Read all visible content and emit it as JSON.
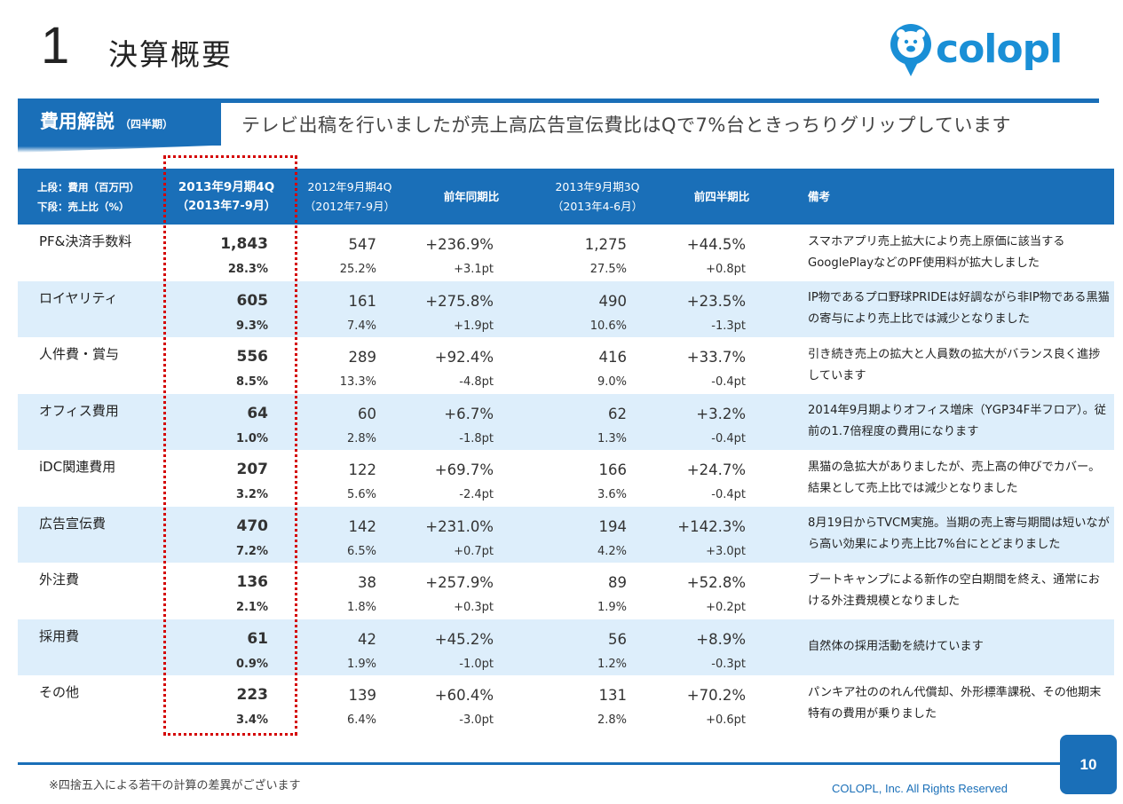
{
  "page": {
    "section_number": "1",
    "section_title": "決算概要",
    "logo_text": "colopl"
  },
  "tag": {
    "title": "費用解説",
    "subtitle": "（四半期）"
  },
  "headline": "テレビ出稿を行いましたが売上高広告宣伝費比はQで7%台ときっちりグリップしています",
  "table": {
    "headers": {
      "corner_line1": "上段：費用（百万円）",
      "corner_line2": "下段：売上比（%）",
      "col1_line1": "2013年9月期4Q",
      "col1_line2": "（2013年7-9月）",
      "col2_line1": "2012年9月期4Q",
      "col2_line2": "（2012年7-9月）",
      "col3": "前年同期比",
      "col4_line1": "2013年9月期3Q",
      "col4_line2": "（2013年4-6月）",
      "col5": "前四半期比",
      "col6": "備考"
    },
    "rows": [
      {
        "label": "PF&決済手数料",
        "c1": "1,843",
        "c1p": "28.3%",
        "c2": "547",
        "c2p": "25.2%",
        "c3": "+236.9%",
        "c3p": "+3.1pt",
        "c4": "1,275",
        "c4p": "27.5%",
        "c5": "+44.5%",
        "c5p": "+0.8pt",
        "note": "スマホアプリ売上拡大により売上原価に該当するGooglePlayなどのPF使用料が拡大しました"
      },
      {
        "label": "ロイヤリティ",
        "c1": "605",
        "c1p": "9.3%",
        "c2": "161",
        "c2p": "7.4%",
        "c3": "+275.8%",
        "c3p": "+1.9pt",
        "c4": "490",
        "c4p": "10.6%",
        "c5": "+23.5%",
        "c5p": "-1.3pt",
        "note": "IP物であるプロ野球PRIDEは好調ながら非IP物である黒猫の寄与により売上比では減少となりました"
      },
      {
        "label": "人件費・賞与",
        "c1": "556",
        "c1p": "8.5%",
        "c2": "289",
        "c2p": "13.3%",
        "c3": "+92.4%",
        "c3p": "-4.8pt",
        "c4": "416",
        "c4p": "9.0%",
        "c5": "+33.7%",
        "c5p": "-0.4pt",
        "note": "引き続き売上の拡大と人員数の拡大がバランス良く進捗しています"
      },
      {
        "label": "オフィス費用",
        "c1": "64",
        "c1p": "1.0%",
        "c2": "60",
        "c2p": "2.8%",
        "c3": "+6.7%",
        "c3p": "-1.8pt",
        "c4": "62",
        "c4p": "1.3%",
        "c5": "+3.2%",
        "c5p": "-0.4pt",
        "note": "2014年9月期よりオフィス増床（YGP34F半フロア）。従前の1.7倍程度の費用になります"
      },
      {
        "label": "iDC関連費用",
        "c1": "207",
        "c1p": "3.2%",
        "c2": "122",
        "c2p": "5.6%",
        "c3": "+69.7%",
        "c3p": "-2.4pt",
        "c4": "166",
        "c4p": "3.6%",
        "c5": "+24.7%",
        "c5p": "-0.4pt",
        "note": "黒猫の急拡大がありましたが、売上高の伸びでカバー。結果として売上比では減少となりました"
      },
      {
        "label": "広告宣伝費",
        "c1": "470",
        "c1p": "7.2%",
        "c2": "142",
        "c2p": "6.5%",
        "c3": "+231.0%",
        "c3p": "+0.7pt",
        "c4": "194",
        "c4p": "4.2%",
        "c5": "+142.3%",
        "c5p": "+3.0pt",
        "note": "8月19日からTVCM実施。当期の売上寄与期間は短いながら高い効果により売上比7%台にとどまりました"
      },
      {
        "label": "外注費",
        "c1": "136",
        "c1p": "2.1%",
        "c2": "38",
        "c2p": "1.8%",
        "c3": "+257.9%",
        "c3p": "+0.3pt",
        "c4": "89",
        "c4p": "1.9%",
        "c5": "+52.8%",
        "c5p": "+0.2pt",
        "note": "ブートキャンプによる新作の空白期間を終え、通常における外注費規模となりました"
      },
      {
        "label": "採用費",
        "c1": "61",
        "c1p": "0.9%",
        "c2": "42",
        "c2p": "1.9%",
        "c3": "+45.2%",
        "c3p": "-1.0pt",
        "c4": "56",
        "c4p": "1.2%",
        "c5": "+8.9%",
        "c5p": "-0.3pt",
        "note": "自然体の採用活動を続けています"
      },
      {
        "label": "その他",
        "c1": "223",
        "c1p": "3.4%",
        "c2": "139",
        "c2p": "6.4%",
        "c3": "+60.4%",
        "c3p": "-3.0pt",
        "c4": "131",
        "c4p": "2.8%",
        "c5": "+70.2%",
        "c5p": "+0.6pt",
        "note": "パンキア社ののれん代償却、外形標準課税、その他期末特有の費用が乗りました"
      }
    ]
  },
  "footer": {
    "footnote": "※四捨五入による若干の計算の差異がございます",
    "copyright": "COLOPL, Inc. All Rights Reserved",
    "page_number": "10"
  },
  "colors": {
    "brand_blue": "#1a6fb8",
    "row_alt": "#ddeefb",
    "highlight_red": "#d40000"
  }
}
